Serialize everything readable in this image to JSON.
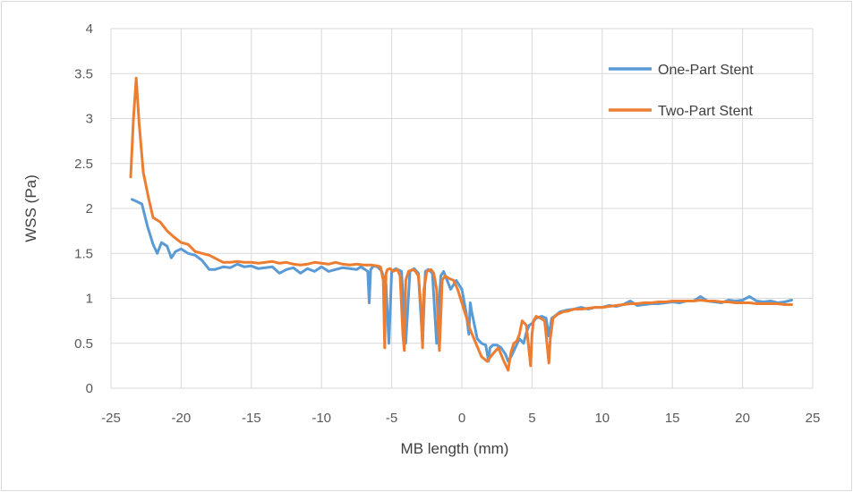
{
  "chart_data": {
    "type": "line",
    "title": "",
    "xlabel": "MB length (mm)",
    "ylabel": "WSS (Pa)",
    "xlim": [
      -25,
      25
    ],
    "ylim": [
      0,
      4
    ],
    "xticks": [
      -25,
      -20,
      -15,
      -10,
      -5,
      0,
      5,
      10,
      15,
      20,
      25
    ],
    "yticks": [
      0,
      0.5,
      1,
      1.5,
      2,
      2.5,
      3,
      3.5,
      4
    ],
    "grid": true,
    "legend_position": "top-right",
    "series": [
      {
        "name": "One-Part Stent",
        "color": "#5b9bd5",
        "x": [
          -23.5,
          -23.2,
          -22.8,
          -22.4,
          -22.0,
          -21.7,
          -21.4,
          -21.0,
          -20.7,
          -20.4,
          -20.0,
          -19.5,
          -19.0,
          -18.5,
          -18.0,
          -17.6,
          -17.0,
          -16.5,
          -16.0,
          -15.5,
          -15.0,
          -14.5,
          -14.0,
          -13.5,
          -13.0,
          -12.5,
          -12.0,
          -11.5,
          -11.0,
          -10.5,
          -10.0,
          -9.5,
          -9.0,
          -8.5,
          -8.0,
          -7.5,
          -7.2,
          -6.9,
          -6.7,
          -6.6,
          -6.5,
          -6.3,
          -6.0,
          -5.7,
          -5.4,
          -5.2,
          -5.0,
          -4.7,
          -4.3,
          -4.0,
          -3.7,
          -3.4,
          -3.1,
          -2.8,
          -2.6,
          -2.4,
          -2.1,
          -1.8,
          -1.5,
          -1.3,
          -1.1,
          -0.8,
          -0.4,
          0.0,
          0.3,
          0.5,
          0.6,
          0.7,
          0.9,
          1.1,
          1.4,
          1.7,
          1.9,
          2.0,
          2.2,
          2.5,
          2.8,
          3.1,
          3.3,
          3.5,
          3.8,
          4.1,
          4.4,
          4.6,
          4.8,
          5.0,
          5.3,
          5.7,
          6.0,
          6.2,
          6.4,
          6.6,
          7.0,
          7.5,
          8.0,
          8.5,
          9.0,
          9.5,
          10.0,
          10.5,
          11.0,
          11.5,
          12.0,
          12.5,
          13.0,
          13.5,
          14.0,
          14.5,
          15.0,
          15.5,
          16.0,
          16.5,
          17.0,
          17.5,
          18.0,
          18.5,
          19.0,
          19.5,
          20.0,
          20.5,
          21.0,
          21.5,
          22.0,
          22.5,
          23.0,
          23.5
        ],
        "y": [
          2.1,
          2.08,
          2.05,
          1.8,
          1.6,
          1.5,
          1.62,
          1.58,
          1.45,
          1.52,
          1.55,
          1.5,
          1.48,
          1.42,
          1.32,
          1.32,
          1.35,
          1.34,
          1.38,
          1.35,
          1.36,
          1.33,
          1.34,
          1.35,
          1.28,
          1.32,
          1.34,
          1.28,
          1.33,
          1.3,
          1.35,
          1.3,
          1.32,
          1.34,
          1.33,
          1.32,
          1.35,
          1.32,
          1.3,
          0.95,
          1.32,
          1.36,
          1.35,
          1.3,
          1.15,
          0.5,
          1.3,
          1.33,
          1.3,
          0.5,
          1.3,
          1.33,
          1.28,
          0.5,
          1.3,
          1.32,
          1.28,
          0.5,
          1.25,
          1.3,
          1.22,
          1.1,
          1.2,
          1.1,
          0.85,
          0.6,
          0.95,
          0.85,
          0.7,
          0.55,
          0.5,
          0.48,
          0.3,
          0.45,
          0.48,
          0.48,
          0.45,
          0.38,
          0.3,
          0.35,
          0.45,
          0.55,
          0.5,
          0.62,
          0.7,
          0.72,
          0.78,
          0.8,
          0.78,
          0.58,
          0.78,
          0.8,
          0.85,
          0.87,
          0.88,
          0.9,
          0.88,
          0.9,
          0.9,
          0.92,
          0.91,
          0.93,
          0.97,
          0.92,
          0.93,
          0.94,
          0.94,
          0.95,
          0.96,
          0.95,
          0.97,
          0.97,
          1.02,
          0.97,
          0.96,
          0.95,
          0.98,
          0.97,
          0.98,
          1.02,
          0.97,
          0.96,
          0.97,
          0.95,
          0.96,
          0.98
        ]
      },
      {
        "name": "Two-Part Stent",
        "color": "#ed7d31",
        "x": [
          -23.6,
          -23.4,
          -23.2,
          -23.0,
          -22.7,
          -22.3,
          -22.0,
          -21.5,
          -21.0,
          -20.5,
          -20.0,
          -19.5,
          -19.0,
          -18.5,
          -18.0,
          -17.5,
          -17.0,
          -16.5,
          -16.0,
          -15.5,
          -15.0,
          -14.5,
          -14.0,
          -13.5,
          -13.0,
          -12.5,
          -12.0,
          -11.5,
          -11.0,
          -10.5,
          -10.0,
          -9.5,
          -9.0,
          -8.5,
          -8.0,
          -7.5,
          -7.0,
          -6.5,
          -6.0,
          -5.8,
          -5.6,
          -5.5,
          -5.4,
          -5.3,
          -5.1,
          -4.9,
          -4.6,
          -4.4,
          -4.2,
          -4.1,
          -4.0,
          -3.8,
          -3.5,
          -3.3,
          -3.1,
          -2.9,
          -2.8,
          -2.7,
          -2.5,
          -2.2,
          -2.0,
          -1.8,
          -1.6,
          -1.5,
          -1.4,
          -1.2,
          -0.9,
          -0.6,
          -0.3,
          0.0,
          0.3,
          0.6,
          1.0,
          1.4,
          1.8,
          2.2,
          2.6,
          3.0,
          3.3,
          3.5,
          3.7,
          3.9,
          4.1,
          4.3,
          4.6,
          4.9,
          5.0,
          5.1,
          5.3,
          5.6,
          5.9,
          6.1,
          6.2,
          6.3,
          6.5,
          6.8,
          7.2,
          7.6,
          8.0,
          8.5,
          9.0,
          9.5,
          10.0,
          10.5,
          11.0,
          11.5,
          12.0,
          12.5,
          13.0,
          13.5,
          14.0,
          14.5,
          15.0,
          15.5,
          16.0,
          16.5,
          17.0,
          17.5,
          18.0,
          18.5,
          19.0,
          19.5,
          20.0,
          20.5,
          21.0,
          21.5,
          22.0,
          22.5,
          23.0,
          23.5
        ],
        "y": [
          2.35,
          3.0,
          3.45,
          2.95,
          2.4,
          2.1,
          1.9,
          1.85,
          1.75,
          1.68,
          1.62,
          1.6,
          1.52,
          1.5,
          1.48,
          1.44,
          1.4,
          1.4,
          1.41,
          1.4,
          1.4,
          1.39,
          1.4,
          1.41,
          1.39,
          1.4,
          1.38,
          1.37,
          1.38,
          1.4,
          1.39,
          1.38,
          1.4,
          1.38,
          1.37,
          1.38,
          1.37,
          1.37,
          1.36,
          1.35,
          1.2,
          0.45,
          1.28,
          1.32,
          1.33,
          1.3,
          1.32,
          1.25,
          0.6,
          0.42,
          1.2,
          1.3,
          1.32,
          1.3,
          1.25,
          0.9,
          0.45,
          1.1,
          1.3,
          1.32,
          1.28,
          1.1,
          0.42,
          0.8,
          1.2,
          1.25,
          1.22,
          1.2,
          1.1,
          0.95,
          0.8,
          0.65,
          0.5,
          0.35,
          0.3,
          0.38,
          0.45,
          0.3,
          0.2,
          0.4,
          0.5,
          0.52,
          0.6,
          0.75,
          0.7,
          0.25,
          0.6,
          0.75,
          0.8,
          0.78,
          0.75,
          0.45,
          0.28,
          0.55,
          0.78,
          0.82,
          0.85,
          0.86,
          0.88,
          0.88,
          0.89,
          0.9,
          0.9,
          0.91,
          0.92,
          0.93,
          0.94,
          0.94,
          0.95,
          0.95,
          0.96,
          0.96,
          0.97,
          0.97,
          0.97,
          0.97,
          0.98,
          0.97,
          0.97,
          0.96,
          0.96,
          0.95,
          0.95,
          0.95,
          0.94,
          0.94,
          0.94,
          0.94,
          0.93,
          0.93
        ]
      }
    ]
  }
}
